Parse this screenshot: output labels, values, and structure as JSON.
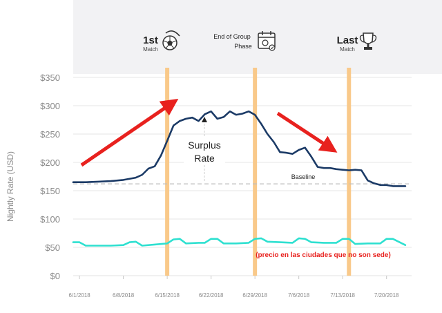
{
  "chart_data": {
    "type": "line",
    "title": "",
    "xlabel": "",
    "ylabel": "Nightly Rate (USD)",
    "ylim": [
      0,
      350
    ],
    "yticks": [
      {
        "value": 0,
        "label": "$0"
      },
      {
        "value": 50,
        "label": "$50"
      },
      {
        "value": 100,
        "label": "$100"
      },
      {
        "value": 150,
        "label": "$150"
      },
      {
        "value": 200,
        "label": "$200"
      },
      {
        "value": 250,
        "label": "$250"
      },
      {
        "value": 300,
        "label": "$300"
      },
      {
        "value": 350,
        "label": "$350"
      }
    ],
    "xlim": [
      "2018-05-31",
      "2018-07-24"
    ],
    "xticks": [
      {
        "date": "2018-06-01",
        "label": "6/1/2018"
      },
      {
        "date": "2018-06-08",
        "label": "6/8/2018"
      },
      {
        "date": "2018-06-15",
        "label": "6/15/2018"
      },
      {
        "date": "2018-06-22",
        "label": "6/22/2018"
      },
      {
        "date": "2018-06-29",
        "label": "6/29/2018"
      },
      {
        "date": "2018-07-06",
        "label": "7/6/2018"
      },
      {
        "date": "2018-07-13",
        "label": "7/13/2018"
      },
      {
        "date": "2018-07-20",
        "label": "7/20/2018"
      }
    ],
    "grid": true,
    "baseline": {
      "value": 162,
      "label": "Baseline"
    },
    "series": [
      {
        "name": "",
        "color": "#1b3a66",
        "points": [
          [
            "2018-05-31",
            165
          ],
          [
            "2018-06-02",
            165
          ],
          [
            "2018-06-04",
            166
          ],
          [
            "2018-06-06",
            167
          ],
          [
            "2018-06-08",
            169
          ],
          [
            "2018-06-10",
            173
          ],
          [
            "2018-06-11",
            178
          ],
          [
            "2018-06-12",
            189
          ],
          [
            "2018-06-13",
            193
          ],
          [
            "2018-06-14",
            212
          ],
          [
            "2018-06-15",
            238
          ],
          [
            "2018-06-16",
            265
          ],
          [
            "2018-06-17",
            273
          ],
          [
            "2018-06-18",
            277
          ],
          [
            "2018-06-19",
            279
          ],
          [
            "2018-06-20",
            273
          ],
          [
            "2018-06-21",
            285
          ],
          [
            "2018-06-22",
            290
          ],
          [
            "2018-06-23",
            277
          ],
          [
            "2018-06-24",
            280
          ],
          [
            "2018-06-25",
            290
          ],
          [
            "2018-06-26",
            284
          ],
          [
            "2018-06-27",
            286
          ],
          [
            "2018-06-28",
            290
          ],
          [
            "2018-06-29",
            284
          ],
          [
            "2018-06-30",
            268
          ],
          [
            "2018-07-01",
            250
          ],
          [
            "2018-07-02",
            236
          ],
          [
            "2018-07-03",
            218
          ],
          [
            "2018-07-04",
            217
          ],
          [
            "2018-07-05",
            215
          ],
          [
            "2018-07-06",
            222
          ],
          [
            "2018-07-07",
            226
          ],
          [
            "2018-07-08",
            210
          ],
          [
            "2018-07-09",
            192
          ],
          [
            "2018-07-10",
            190
          ],
          [
            "2018-07-11",
            190
          ],
          [
            "2018-07-12",
            188
          ],
          [
            "2018-07-13",
            187
          ],
          [
            "2018-07-14",
            186
          ],
          [
            "2018-07-15",
            187
          ],
          [
            "2018-07-16",
            186
          ],
          [
            "2018-07-17",
            168
          ],
          [
            "2018-07-18",
            163
          ],
          [
            "2018-07-19",
            160
          ],
          [
            "2018-07-20",
            160
          ],
          [
            "2018-07-21",
            158
          ],
          [
            "2018-07-23",
            158
          ]
        ]
      },
      {
        "name": "",
        "color": "#2ee0d0",
        "points": [
          [
            "2018-05-31",
            59
          ],
          [
            "2018-06-01",
            59
          ],
          [
            "2018-06-02",
            53
          ],
          [
            "2018-06-04",
            53
          ],
          [
            "2018-06-06",
            53
          ],
          [
            "2018-06-08",
            54
          ],
          [
            "2018-06-09",
            59
          ],
          [
            "2018-06-10",
            60
          ],
          [
            "2018-06-11",
            53
          ],
          [
            "2018-06-13",
            55
          ],
          [
            "2018-06-15",
            57
          ],
          [
            "2018-06-16",
            64
          ],
          [
            "2018-06-17",
            65
          ],
          [
            "2018-06-18",
            57
          ],
          [
            "2018-06-20",
            58
          ],
          [
            "2018-06-21",
            58
          ],
          [
            "2018-06-22",
            65
          ],
          [
            "2018-06-23",
            65
          ],
          [
            "2018-06-24",
            57
          ],
          [
            "2018-06-26",
            57
          ],
          [
            "2018-06-28",
            58
          ],
          [
            "2018-06-29",
            65
          ],
          [
            "2018-06-30",
            66
          ],
          [
            "2018-07-01",
            60
          ],
          [
            "2018-07-03",
            59
          ],
          [
            "2018-07-05",
            58
          ],
          [
            "2018-07-06",
            66
          ],
          [
            "2018-07-07",
            65
          ],
          [
            "2018-07-08",
            59
          ],
          [
            "2018-07-10",
            58
          ],
          [
            "2018-07-12",
            58
          ],
          [
            "2018-07-13",
            65
          ],
          [
            "2018-07-14",
            65
          ],
          [
            "2018-07-15",
            56
          ],
          [
            "2018-07-17",
            57
          ],
          [
            "2018-07-19",
            57
          ],
          [
            "2018-07-20",
            65
          ],
          [
            "2018-07-21",
            65
          ],
          [
            "2018-07-23",
            54
          ]
        ]
      }
    ],
    "events": [
      {
        "date": "2018-06-15",
        "label_big": "1st",
        "label_small": "Match",
        "icon": "soccer-ball-icon"
      },
      {
        "date": "2018-06-29",
        "label_big": "",
        "label_line1": "End of Group",
        "label_line2": "Phase",
        "icon": "calendar-icon"
      },
      {
        "date": "2018-07-14",
        "label_big": "Last",
        "label_small": "Match",
        "icon": "trophy-icon"
      }
    ],
    "annotations": {
      "surplus_line1": "Surplus",
      "surplus_line2": "Rate",
      "note": "(precio en las ciudades que no son sede)"
    },
    "colors": {
      "event_line": "#f9c98a",
      "arrow": "#e8211e",
      "note": "#e8211e",
      "header_band": "#f2f2f4",
      "grid": "#e6e6e6",
      "baseline": "#bdbdbd"
    }
  }
}
